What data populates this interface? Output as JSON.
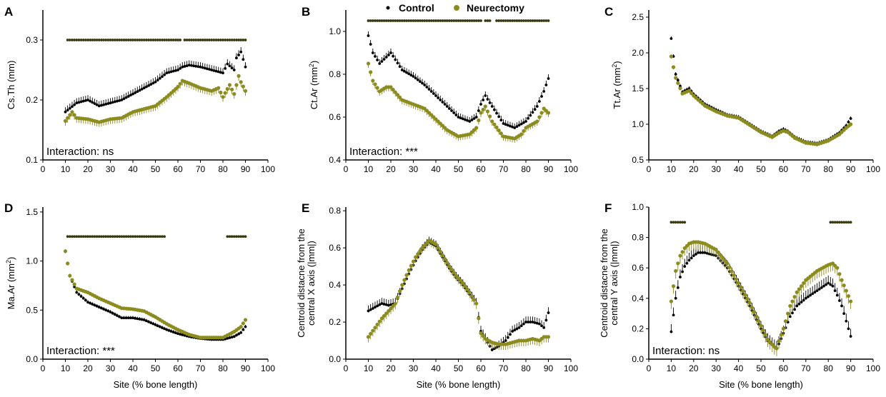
{
  "colors": {
    "control": "#000000",
    "neurectomy": "#8c8c1e",
    "neurectomy_light": "#c4c43c",
    "axis": "#000000"
  },
  "legend": {
    "control": "Control",
    "neurectomy": "Neurectomy"
  },
  "chart_data": [
    {
      "panel": "A",
      "type": "scatter",
      "ylabel": "Cs.Th (mm)",
      "xlabel": "",
      "xlim": [
        0,
        100
      ],
      "ylim": [
        0.1,
        0.35
      ],
      "xticks": [
        0,
        10,
        20,
        30,
        40,
        50,
        60,
        70,
        80,
        90,
        100
      ],
      "yticks": [
        0.1,
        0.2,
        0.3
      ],
      "ytick_labels": [
        "0.1",
        "0.2",
        "0.3"
      ],
      "interaction": "Interaction: ns",
      "significance_y": 0.3,
      "significance_ranges": [
        [
          11,
          61
        ],
        [
          63,
          90
        ]
      ],
      "err": 0.008,
      "series": [
        {
          "name": "Control",
          "x": [
            10,
            15,
            20,
            25,
            30,
            35,
            40,
            45,
            50,
            55,
            60,
            62,
            65,
            70,
            75,
            80,
            82,
            85,
            86,
            88,
            90
          ],
          "y": [
            0.18,
            0.195,
            0.2,
            0.19,
            0.195,
            0.2,
            0.21,
            0.22,
            0.23,
            0.245,
            0.25,
            0.255,
            0.258,
            0.255,
            0.25,
            0.245,
            0.26,
            0.25,
            0.27,
            0.28,
            0.255
          ]
        },
        {
          "name": "Neurectomy",
          "x": [
            10,
            13,
            15,
            20,
            25,
            30,
            35,
            40,
            45,
            50,
            55,
            58,
            60,
            62,
            65,
            70,
            75,
            78,
            80,
            83,
            85,
            87,
            88,
            90
          ],
          "y": [
            0.165,
            0.18,
            0.17,
            0.168,
            0.163,
            0.168,
            0.17,
            0.18,
            0.185,
            0.19,
            0.205,
            0.215,
            0.222,
            0.232,
            0.228,
            0.22,
            0.215,
            0.22,
            0.205,
            0.225,
            0.21,
            0.24,
            0.23,
            0.215
          ]
        }
      ]
    },
    {
      "panel": "B",
      "type": "scatter",
      "ylabel": "Ct.Ar (mm",
      "ylabel_sup": "2",
      "ylabel_end": ")",
      "xlabel": "",
      "xlim": [
        0,
        100
      ],
      "ylim": [
        0.4,
        1.1
      ],
      "xticks": [
        0,
        10,
        20,
        30,
        40,
        50,
        60,
        70,
        80,
        90,
        100
      ],
      "yticks": [
        0.4,
        0.6,
        0.8,
        1.0
      ],
      "ytick_labels": [
        "0.4",
        "0.6",
        "0.8",
        "1.0"
      ],
      "interaction": "Interaction: ***",
      "significance_y": 1.05,
      "significance_ranges": [
        [
          10,
          60
        ],
        [
          62,
          64
        ],
        [
          67,
          90
        ]
      ],
      "err": 0.02,
      "series": [
        {
          "name": "Control",
          "x": [
            10,
            12,
            15,
            18,
            20,
            25,
            30,
            35,
            40,
            45,
            50,
            55,
            58,
            60,
            62,
            65,
            70,
            75,
            80,
            85,
            88,
            90
          ],
          "y": [
            0.98,
            0.9,
            0.85,
            0.88,
            0.9,
            0.82,
            0.79,
            0.75,
            0.7,
            0.65,
            0.6,
            0.58,
            0.6,
            0.66,
            0.7,
            0.65,
            0.57,
            0.55,
            0.58,
            0.65,
            0.72,
            0.78
          ]
        },
        {
          "name": "Neurectomy",
          "x": [
            10,
            12,
            15,
            18,
            20,
            25,
            30,
            35,
            40,
            45,
            50,
            55,
            58,
            60,
            62,
            65,
            70,
            75,
            78,
            80,
            85,
            88,
            90
          ],
          "y": [
            0.85,
            0.77,
            0.72,
            0.74,
            0.74,
            0.68,
            0.66,
            0.64,
            0.59,
            0.54,
            0.51,
            0.52,
            0.55,
            0.62,
            0.65,
            0.58,
            0.51,
            0.5,
            0.52,
            0.55,
            0.58,
            0.64,
            0.62
          ]
        }
      ]
    },
    {
      "panel": "C",
      "type": "scatter",
      "ylabel": "Tt.Ar (mm",
      "ylabel_sup": "2",
      "ylabel_end": ")",
      "xlabel": "",
      "xlim": [
        0,
        100
      ],
      "ylim": [
        0.5,
        2.6
      ],
      "xticks": [
        0,
        10,
        20,
        30,
        40,
        50,
        60,
        70,
        80,
        90,
        100
      ],
      "yticks": [
        0.5,
        1.0,
        1.5,
        2.0,
        2.5
      ],
      "ytick_labels": [
        "0.5",
        "1.0",
        "1.5",
        "2.0",
        "2.5"
      ],
      "interaction": "",
      "significance_ranges": [],
      "err": 0.03,
      "series": [
        {
          "name": "Control",
          "x": [
            10,
            12,
            15,
            18,
            20,
            25,
            30,
            35,
            40,
            45,
            50,
            55,
            58,
            60,
            62,
            65,
            70,
            75,
            80,
            85,
            88,
            90
          ],
          "y": [
            2.2,
            1.7,
            1.45,
            1.5,
            1.42,
            1.28,
            1.2,
            1.13,
            1.1,
            1.0,
            0.9,
            0.83,
            0.9,
            0.93,
            0.9,
            0.82,
            0.75,
            0.73,
            0.78,
            0.88,
            0.98,
            1.08
          ]
        },
        {
          "name": "Neurectomy",
          "x": [
            10,
            12,
            15,
            18,
            20,
            25,
            30,
            35,
            40,
            45,
            50,
            55,
            58,
            60,
            62,
            65,
            70,
            75,
            80,
            85,
            88,
            90
          ],
          "y": [
            1.95,
            1.65,
            1.43,
            1.47,
            1.4,
            1.26,
            1.18,
            1.12,
            1.09,
            0.99,
            0.89,
            0.82,
            0.88,
            0.91,
            0.89,
            0.81,
            0.74,
            0.72,
            0.77,
            0.86,
            0.95,
            1.0
          ]
        }
      ]
    },
    {
      "panel": "D",
      "type": "scatter",
      "ylabel": "Ma.Ar (mm",
      "ylabel_sup": "2",
      "ylabel_end": ")",
      "xlabel": "Site (% bone length)",
      "xlim": [
        0,
        100
      ],
      "ylim": [
        0.0,
        1.55
      ],
      "xticks": [
        0,
        10,
        20,
        30,
        40,
        50,
        60,
        70,
        80,
        90,
        100
      ],
      "yticks": [
        0.0,
        0.5,
        1.0,
        1.5
      ],
      "ytick_labels": [
        "0.0",
        "0.5",
        "1.0",
        "1.5"
      ],
      "interaction": "Interaction: ***",
      "significance_y": 1.25,
      "significance_ranges": [
        [
          11,
          54
        ],
        [
          82,
          90
        ]
      ],
      "err": 0.02,
      "series": [
        {
          "name": "Control",
          "x": [
            10,
            12,
            15,
            20,
            25,
            30,
            35,
            40,
            45,
            50,
            55,
            60,
            65,
            70,
            75,
            80,
            85,
            88,
            90
          ],
          "y": [
            1.1,
            0.85,
            0.68,
            0.58,
            0.53,
            0.48,
            0.42,
            0.42,
            0.4,
            0.35,
            0.3,
            0.26,
            0.23,
            0.21,
            0.2,
            0.2,
            0.23,
            0.27,
            0.33
          ]
        },
        {
          "name": "Neurectomy",
          "x": [
            10,
            12,
            15,
            20,
            25,
            30,
            35,
            40,
            45,
            50,
            55,
            60,
            65,
            70,
            75,
            80,
            85,
            88,
            90
          ],
          "y": [
            1.1,
            0.85,
            0.72,
            0.68,
            0.62,
            0.57,
            0.52,
            0.51,
            0.49,
            0.43,
            0.36,
            0.3,
            0.25,
            0.22,
            0.22,
            0.22,
            0.28,
            0.33,
            0.4
          ]
        }
      ]
    },
    {
      "panel": "E",
      "type": "scatter",
      "ylabel": "Centroid distacne from the",
      "ylabel2": "central X axis (|mm|)",
      "xlabel": "Site (% bone length)",
      "xlim": [
        0,
        100
      ],
      "ylim": [
        0.0,
        0.82
      ],
      "xticks": [
        0,
        10,
        20,
        30,
        40,
        50,
        60,
        70,
        80,
        90,
        100
      ],
      "yticks": [
        0.0,
        0.2,
        0.4,
        0.6,
        0.8
      ],
      "ytick_labels": [
        "0.0",
        "0.2",
        "0.4",
        "0.6",
        "0.8"
      ],
      "interaction": "",
      "significance_ranges": [],
      "err": 0.03,
      "series": [
        {
          "name": "Control",
          "x": [
            10,
            13,
            16,
            19,
            22,
            25,
            28,
            31,
            34,
            37,
            40,
            43,
            46,
            49,
            52,
            55,
            58,
            60,
            62,
            65,
            68,
            71,
            74,
            77,
            80,
            83,
            86,
            88,
            90
          ],
          "y": [
            0.26,
            0.28,
            0.3,
            0.29,
            0.3,
            0.38,
            0.46,
            0.53,
            0.59,
            0.63,
            0.61,
            0.55,
            0.49,
            0.44,
            0.4,
            0.35,
            0.3,
            0.15,
            0.11,
            0.05,
            0.07,
            0.1,
            0.15,
            0.17,
            0.2,
            0.2,
            0.19,
            0.17,
            0.25
          ]
        },
        {
          "name": "Neurectomy",
          "x": [
            10,
            13,
            16,
            19,
            22,
            25,
            28,
            31,
            34,
            37,
            40,
            43,
            46,
            49,
            52,
            55,
            58,
            60,
            62,
            65,
            68,
            71,
            74,
            77,
            80,
            83,
            86,
            88,
            90
          ],
          "y": [
            0.12,
            0.17,
            0.22,
            0.26,
            0.3,
            0.4,
            0.48,
            0.55,
            0.6,
            0.64,
            0.62,
            0.56,
            0.5,
            0.45,
            0.41,
            0.36,
            0.3,
            0.14,
            0.11,
            0.09,
            0.08,
            0.08,
            0.09,
            0.1,
            0.1,
            0.11,
            0.1,
            0.12,
            0.12
          ]
        }
      ]
    },
    {
      "panel": "F",
      "type": "scatter",
      "ylabel": "Centroid distacne from the",
      "ylabel2": "central Y axis (|mm|)",
      "xlabel": "Site (% bone length)",
      "xlim": [
        0,
        100
      ],
      "ylim": [
        0.0,
        1.0
      ],
      "xticks": [
        0,
        10,
        20,
        30,
        40,
        50,
        60,
        70,
        80,
        90,
        100
      ],
      "yticks": [
        0.0,
        0.2,
        0.4,
        0.6,
        0.8,
        1.0
      ],
      "ytick_labels": [
        "0.0",
        "0.2",
        "0.4",
        "0.6",
        "0.8",
        "1.0"
      ],
      "interaction": "Interaction: ns",
      "significance_y": 0.9,
      "significance_ranges": [
        [
          10,
          16
        ],
        [
          81,
          90
        ]
      ],
      "err": 0.05,
      "series": [
        {
          "name": "Control",
          "x": [
            10,
            12,
            14,
            16,
            18,
            20,
            22,
            25,
            30,
            35,
            40,
            45,
            50,
            53,
            56,
            57,
            58,
            60,
            63,
            66,
            70,
            75,
            80,
            82,
            84,
            86,
            88,
            90
          ],
          "y": [
            0.18,
            0.4,
            0.54,
            0.61,
            0.65,
            0.68,
            0.7,
            0.7,
            0.68,
            0.6,
            0.48,
            0.35,
            0.2,
            0.12,
            0.08,
            0.07,
            0.1,
            0.17,
            0.28,
            0.35,
            0.4,
            0.45,
            0.5,
            0.48,
            0.42,
            0.35,
            0.25,
            0.15
          ]
        },
        {
          "name": "Neurectomy",
          "x": [
            10,
            12,
            14,
            16,
            18,
            20,
            22,
            25,
            30,
            35,
            40,
            45,
            50,
            53,
            56,
            57,
            58,
            60,
            63,
            66,
            70,
            75,
            80,
            82,
            84,
            86,
            88,
            90
          ],
          "y": [
            0.38,
            0.58,
            0.68,
            0.73,
            0.76,
            0.77,
            0.77,
            0.76,
            0.72,
            0.63,
            0.5,
            0.37,
            0.22,
            0.13,
            0.08,
            0.07,
            0.12,
            0.2,
            0.35,
            0.44,
            0.52,
            0.58,
            0.62,
            0.63,
            0.6,
            0.52,
            0.45,
            0.38
          ]
        }
      ]
    }
  ]
}
